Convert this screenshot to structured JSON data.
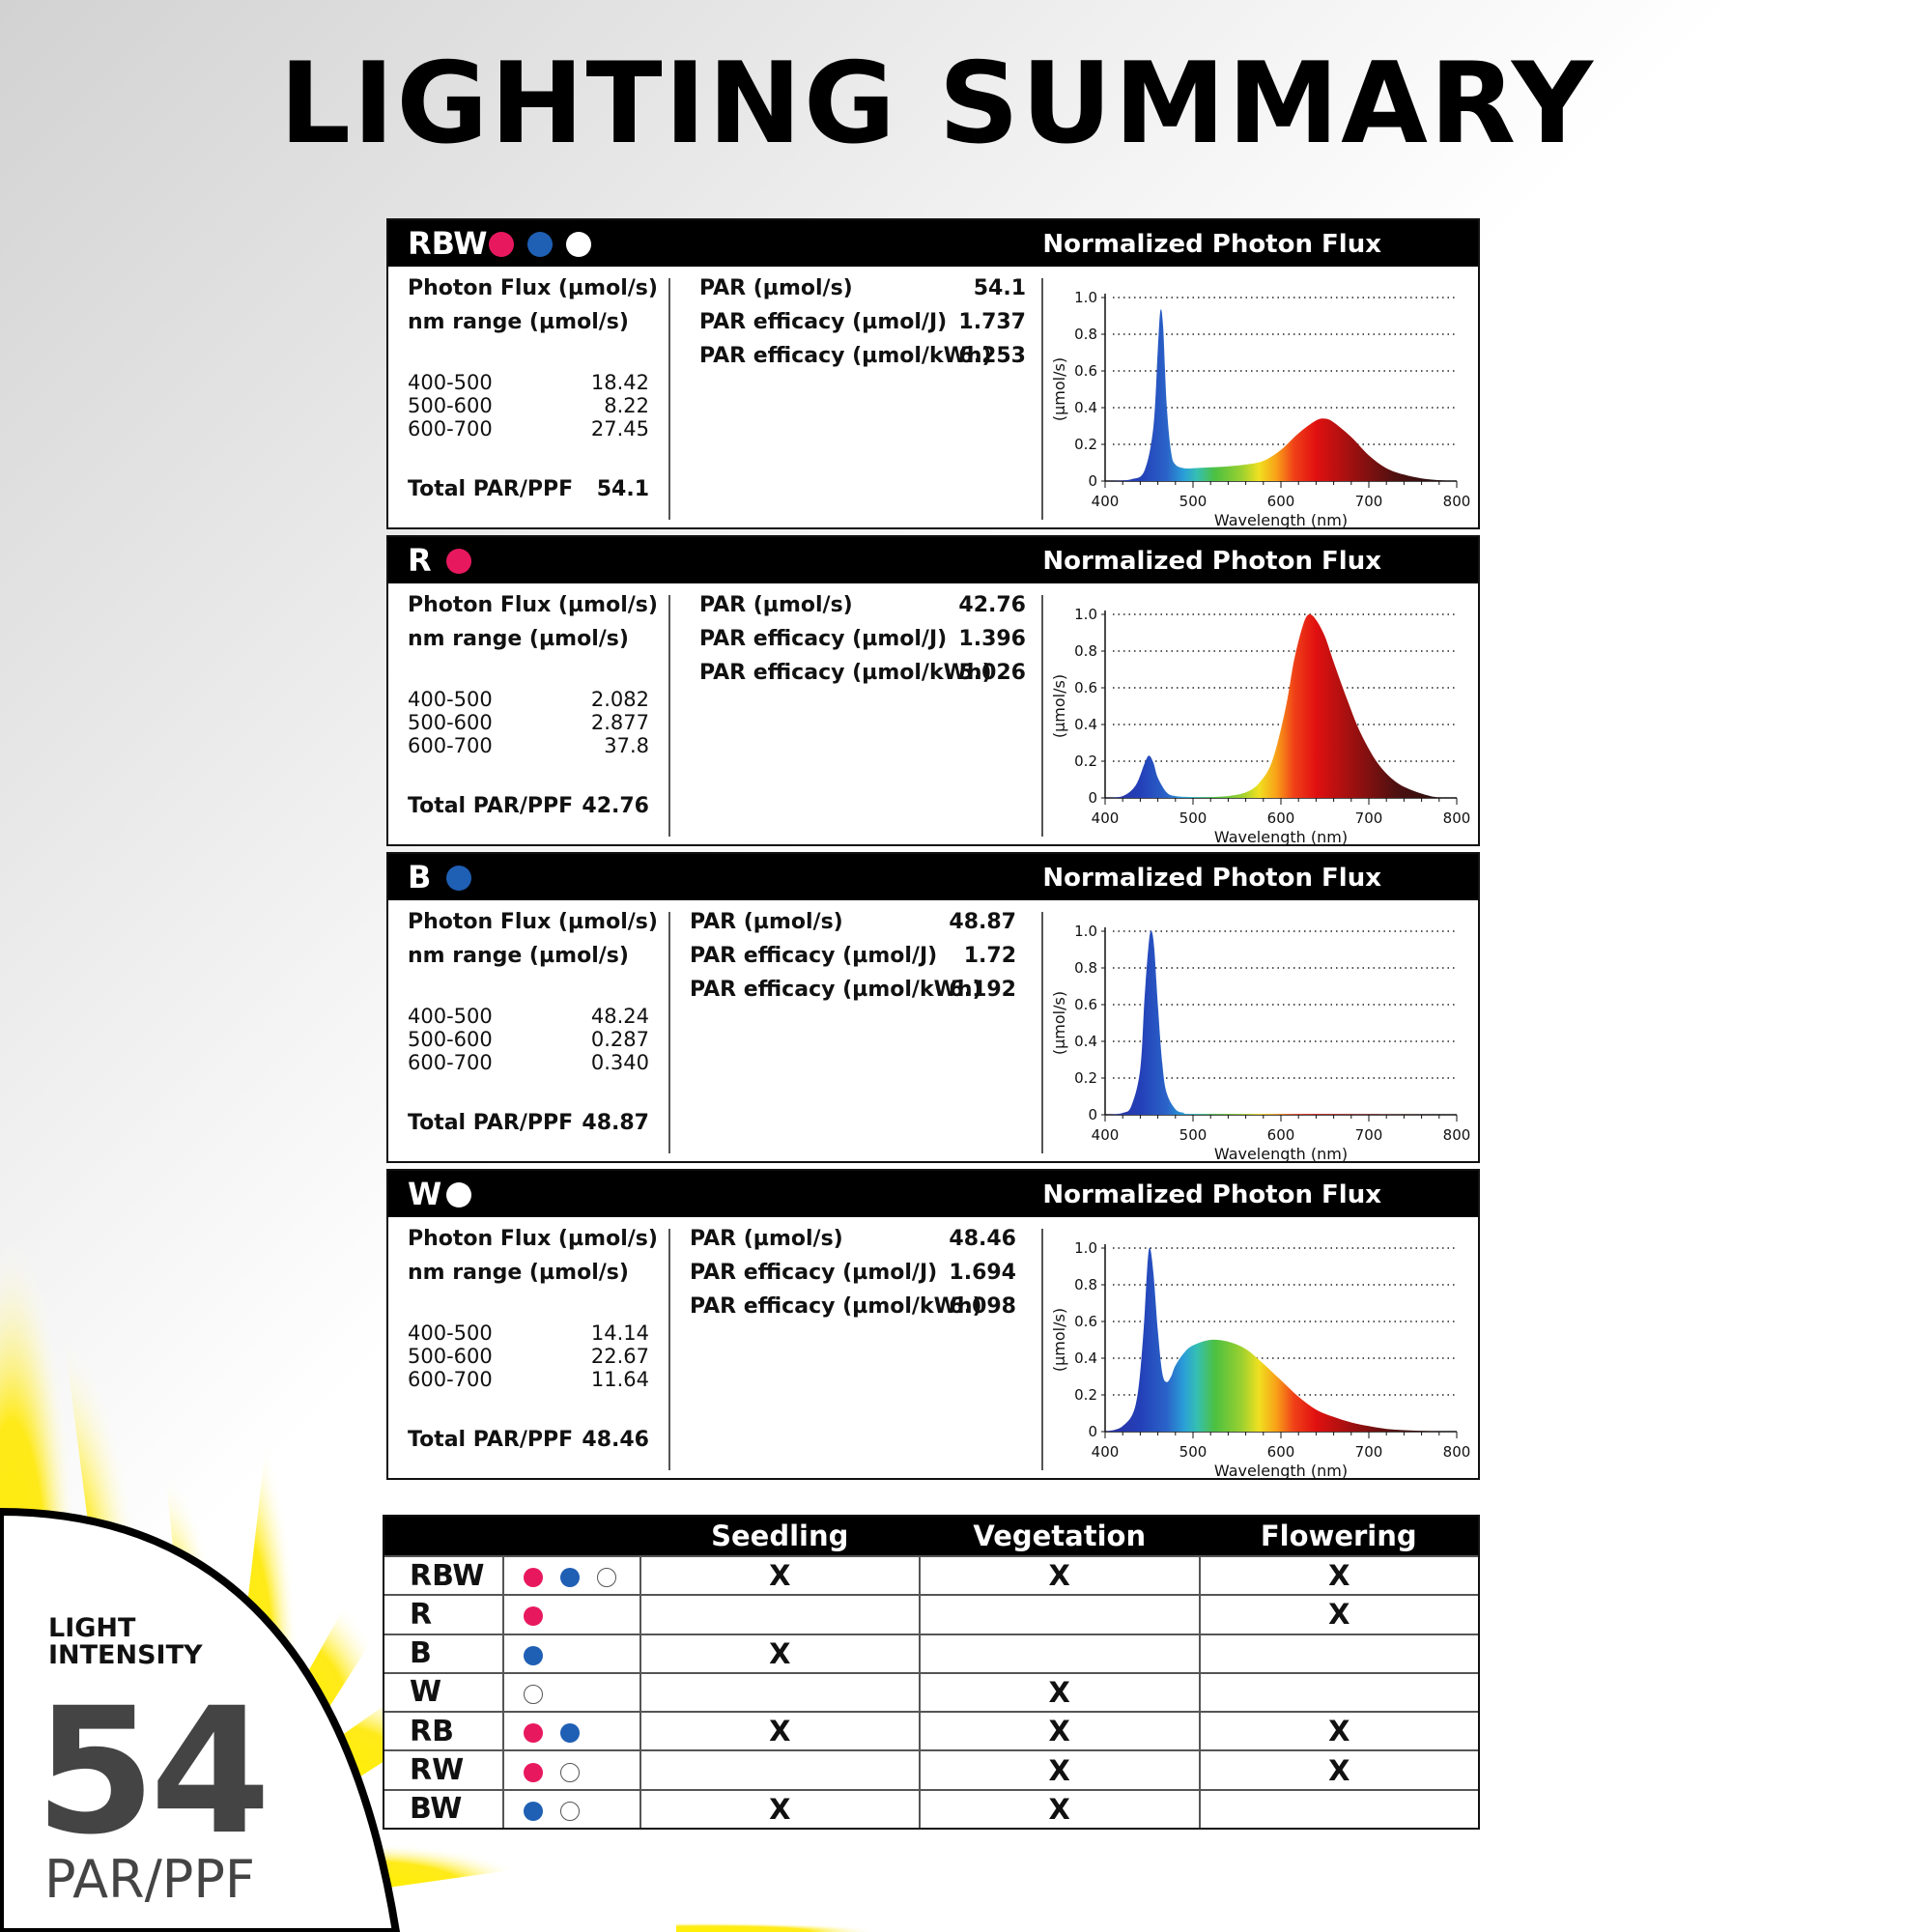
{
  "title": "LIGHTING SUMMARY",
  "colors": {
    "red": "#e8185f",
    "blue": "#1f5fb4",
    "white": "#ffffff",
    "black": "#000000",
    "yellow": "#ffe600"
  },
  "labels": {
    "chart_title": "Normalized Photon Flux",
    "photon_flux": "Photon Flux (µmol/s)",
    "nm_range": "nm range (µmol/s)",
    "total": "Total PAR/PPF",
    "par": "PAR (µmol/s)",
    "par_efficacy_j": "PAR efficacy (µmol/J)",
    "par_efficacy_kwh": "PAR efficacy (µmol/kWh)"
  },
  "panels": [
    {
      "name": "RBW",
      "dots": [
        "red",
        "blue",
        "white"
      ],
      "ranges": [
        {
          "range": "400-500",
          "value": "18.42"
        },
        {
          "range": "500-600",
          "value": "8.22"
        },
        {
          "range": "600-700",
          "value": "27.45"
        }
      ],
      "total": "54.1",
      "par": "54.1",
      "eff_j": "1.737",
      "eff_kwh": "6.253"
    },
    {
      "name": "R",
      "dots": [
        "red"
      ],
      "ranges": [
        {
          "range": "400-500",
          "value": "2.082"
        },
        {
          "range": "500-600",
          "value": "2.877"
        },
        {
          "range": "600-700",
          "value": "37.8"
        }
      ],
      "total": "42.76",
      "par": "42.76",
      "eff_j": "1.396",
      "eff_kwh": "5.026"
    },
    {
      "name": "B",
      "dots": [
        "blue"
      ],
      "ranges": [
        {
          "range": "400-500",
          "value": "48.24"
        },
        {
          "range": "500-600",
          "value": "0.287"
        },
        {
          "range": "600-700",
          "value": "0.340"
        }
      ],
      "total": "48.87",
      "par": "48.87",
      "eff_j": "1.72",
      "eff_kwh": "6.192"
    },
    {
      "name": "W",
      "dots": [
        "white"
      ],
      "ranges": [
        {
          "range": "400-500",
          "value": "14.14"
        },
        {
          "range": "500-600",
          "value": "22.67"
        },
        {
          "range": "600-700",
          "value": "11.64"
        }
      ],
      "total": "48.46",
      "par": "48.46",
      "eff_j": "1.694",
      "eff_kwh": "6.098"
    }
  ],
  "chart_data": [
    {
      "type": "area",
      "title": "Normalized Photon Flux",
      "series_label": "RBW",
      "xlabel": "Wavelength (nm)",
      "ylabel": "(µmol/s)",
      "xlim": [
        400,
        800
      ],
      "ylim": [
        0,
        1.0
      ],
      "x_ticks": [
        "400",
        "500",
        "600",
        "700",
        "800"
      ],
      "y_ticks": [
        "0",
        "0.2",
        "0.4",
        "0.6",
        "0.8",
        "1.0"
      ],
      "grid": "dotted-horizontal",
      "x": [
        400,
        430,
        445,
        455,
        460,
        463,
        466,
        470,
        475,
        480,
        490,
        500,
        520,
        540,
        560,
        580,
        600,
        620,
        640,
        650,
        660,
        680,
        700,
        720,
        740,
        760,
        780,
        800
      ],
      "y": [
        0,
        0.01,
        0.06,
        0.3,
        0.72,
        0.93,
        0.84,
        0.42,
        0.16,
        0.09,
        0.07,
        0.07,
        0.075,
        0.08,
        0.09,
        0.11,
        0.17,
        0.26,
        0.33,
        0.34,
        0.32,
        0.24,
        0.14,
        0.07,
        0.035,
        0.015,
        0.005,
        0
      ]
    },
    {
      "type": "area",
      "title": "Normalized Photon Flux",
      "series_label": "R",
      "xlabel": "Wavelength (nm)",
      "ylabel": "(µmol/s)",
      "xlim": [
        400,
        800
      ],
      "ylim": [
        0,
        1.0
      ],
      "x_ticks": [
        "400",
        "500",
        "600",
        "700",
        "800"
      ],
      "y_ticks": [
        "0",
        "0.2",
        "0.4",
        "0.6",
        "0.8",
        "1.0"
      ],
      "grid": "dotted-horizontal",
      "x": [
        400,
        420,
        435,
        445,
        450,
        455,
        460,
        470,
        480,
        500,
        520,
        540,
        560,
        575,
        590,
        605,
        615,
        625,
        632,
        640,
        650,
        660,
        675,
        690,
        710,
        730,
        750,
        770,
        785
      ],
      "y": [
        0,
        0.01,
        0.07,
        0.19,
        0.23,
        0.19,
        0.11,
        0.03,
        0.01,
        0.005,
        0.005,
        0.01,
        0.03,
        0.08,
        0.2,
        0.48,
        0.75,
        0.94,
        1.0,
        0.97,
        0.88,
        0.74,
        0.54,
        0.36,
        0.19,
        0.09,
        0.04,
        0.01,
        0
      ]
    },
    {
      "type": "area",
      "title": "Normalized Photon Flux",
      "series_label": "B",
      "xlabel": "Wavelength (nm)",
      "ylabel": "(µmol/s)",
      "xlim": [
        400,
        800
      ],
      "ylim": [
        0,
        1.0
      ],
      "x_ticks": [
        "400",
        "500",
        "600",
        "700",
        "800"
      ],
      "y_ticks": [
        "0",
        "0.2",
        "0.4",
        "0.6",
        "0.8",
        "1.0"
      ],
      "grid": "dotted-horizontal",
      "x": [
        400,
        420,
        430,
        440,
        445,
        450,
        453,
        456,
        460,
        465,
        470,
        480,
        490,
        500,
        600,
        700,
        800
      ],
      "y": [
        0,
        0.01,
        0.05,
        0.25,
        0.65,
        0.95,
        1.0,
        0.9,
        0.6,
        0.28,
        0.12,
        0.03,
        0.01,
        0.005,
        0.005,
        0.003,
        0
      ]
    },
    {
      "type": "area",
      "title": "Normalized Photon Flux",
      "series_label": "W",
      "xlabel": "Wavelength (nm)",
      "ylabel": "(µmol/s)",
      "xlim": [
        400,
        800
      ],
      "ylim": [
        0,
        1.0
      ],
      "x_ticks": [
        "400",
        "500",
        "600",
        "700",
        "800"
      ],
      "y_ticks": [
        "0",
        "0.2",
        "0.4",
        "0.6",
        "0.8",
        "1.0"
      ],
      "grid": "dotted-horizontal",
      "x": [
        400,
        420,
        435,
        443,
        448,
        451,
        455,
        460,
        465,
        470,
        475,
        480,
        490,
        500,
        520,
        540,
        560,
        580,
        600,
        620,
        640,
        660,
        680,
        700,
        720,
        740,
        760,
        780,
        800
      ],
      "y": [
        0,
        0.03,
        0.15,
        0.5,
        0.9,
        1.0,
        0.86,
        0.55,
        0.32,
        0.27,
        0.3,
        0.36,
        0.43,
        0.47,
        0.5,
        0.49,
        0.45,
        0.37,
        0.28,
        0.19,
        0.12,
        0.08,
        0.05,
        0.03,
        0.015,
        0.008,
        0.004,
        0.002,
        0
      ]
    }
  ],
  "usage_table": {
    "headers": [
      "",
      "",
      "Seedling",
      "Vegetation",
      "Flowering"
    ],
    "rows": [
      {
        "name": "RBW",
        "dots": [
          "red",
          "blue",
          "white"
        ],
        "seedling": "X",
        "vegetation": "X",
        "flowering": "X"
      },
      {
        "name": "R",
        "dots": [
          "red"
        ],
        "seedling": "",
        "vegetation": "",
        "flowering": "X"
      },
      {
        "name": "B",
        "dots": [
          "blue"
        ],
        "seedling": "X",
        "vegetation": "",
        "flowering": ""
      },
      {
        "name": "W",
        "dots": [
          "white"
        ],
        "seedling": "",
        "vegetation": "X",
        "flowering": ""
      },
      {
        "name": "RB",
        "dots": [
          "red",
          "blue"
        ],
        "seedling": "X",
        "vegetation": "X",
        "flowering": "X"
      },
      {
        "name": "RW",
        "dots": [
          "red",
          "white"
        ],
        "seedling": "",
        "vegetation": "X",
        "flowering": "X"
      },
      {
        "name": "BW",
        "dots": [
          "blue",
          "white"
        ],
        "seedling": "X",
        "vegetation": "X",
        "flowering": ""
      }
    ]
  },
  "intensity": {
    "label": "LIGHT\nINTENSITY",
    "value": "54",
    "unit": "PAR/PPF"
  }
}
